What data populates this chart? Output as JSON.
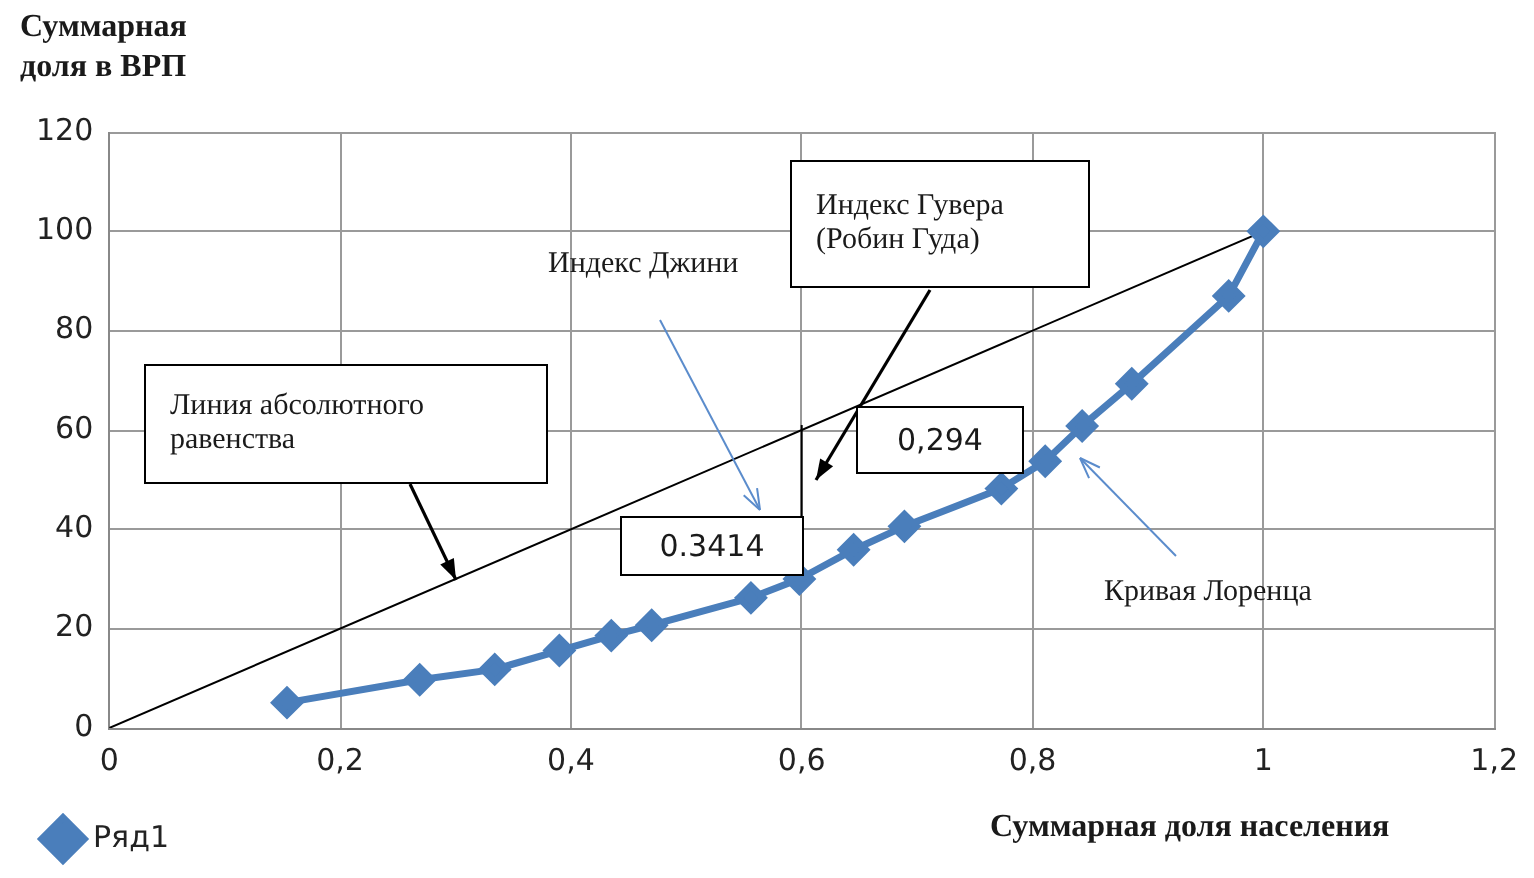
{
  "chart_data": {
    "type": "line",
    "xlabel": "Суммарная доля населения",
    "ylabel": "Суммарная доля в ВРП",
    "xlim": [
      0,
      1.2
    ],
    "xticks": [
      0,
      {
        "value": 0.2,
        "label": "0,2"
      },
      {
        "value": 0.4,
        "label": "0,4"
      },
      {
        "value": 0.6,
        "label": "0,6"
      },
      {
        "value": 0.8,
        "label": "0,8"
      },
      1,
      {
        "value": 1.2,
        "label": "1,2"
      }
    ],
    "ylim": [
      0,
      120
    ],
    "yticks": [
      0,
      20,
      40,
      60,
      80,
      100,
      120
    ],
    "grid": true,
    "legend": "bottom",
    "series": [
      {
        "name": "Ряд1",
        "color": "#4a7ebb",
        "marker": "diamond",
        "x": [
          0.154,
          0.269,
          0.334,
          0.39,
          0.435,
          0.47,
          0.556,
          0.598,
          0.645,
          0.689,
          0.773,
          0.811,
          0.843,
          0.886,
          0.97,
          1.0
        ],
        "values": [
          5.1,
          9.7,
          11.8,
          15.6,
          18.6,
          20.7,
          26.2,
          30,
          35.9,
          40.6,
          48.2,
          53.7,
          60.8,
          69.3,
          87,
          100
        ]
      },
      {
        "color": "#000000",
        "marker": "none",
        "x": [
          0,
          1
        ],
        "values": [
          0,
          100
        ]
      },
      {
        "color": "#000000",
        "marker": "none",
        "x": [
          0.6,
          0.6
        ],
        "values": [
          30,
          61
        ]
      }
    ],
    "annotations": [
      "Линия абсолютного равенства",
      "Индекс Джини",
      "Индекс Гувера (Робин Гуда)",
      "0.3414",
      "0,294",
      "Кривая Лоренца"
    ]
  }
}
